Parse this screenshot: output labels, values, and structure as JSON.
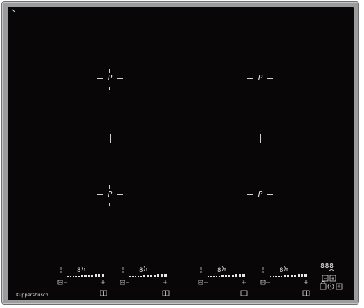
{
  "product": {
    "brand": "Küppersbusch"
  },
  "zones": [
    {
      "name": "front-left",
      "label": "P"
    },
    {
      "name": "rear-left",
      "label": "P"
    },
    {
      "name": "front-right",
      "label": "P"
    },
    {
      "name": "rear-right",
      "label": "P"
    }
  ],
  "controls": [
    {
      "name": "zone-1",
      "display": "8",
      "minus": "−",
      "plus": "+"
    },
    {
      "name": "zone-2",
      "display": "8",
      "minus": "−",
      "plus": "+"
    },
    {
      "name": "zone-3",
      "display": "8",
      "minus": "−",
      "plus": "+"
    },
    {
      "name": "zone-4",
      "display": "8",
      "minus": "−",
      "plus": "+"
    }
  ],
  "timer": {
    "display": "888"
  },
  "colors": {
    "glass": "#080607",
    "frame": "#9b9c9e",
    "print": "#e6e6e6"
  },
  "icons": [
    "power-icon",
    "lock-icon",
    "timer-icon",
    "zone-select-icon",
    "bridge-icon"
  ]
}
